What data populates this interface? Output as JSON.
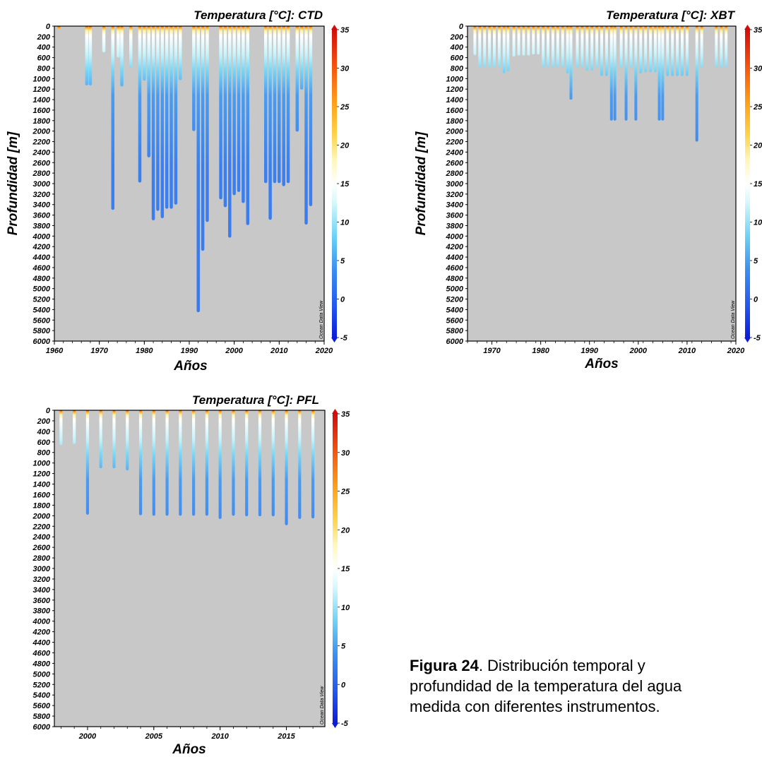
{
  "caption": {
    "label": "Figura 24",
    "line1": ". Distribución temporal y",
    "line2": "profundidad de la temperatura del agua",
    "line3": "medida con diferentes instrumentos."
  },
  "chart_data": [
    {
      "type": "scatter",
      "title": "Temperatura [°C]: CTD",
      "xlabel": "Años",
      "ylabel": "Profundidad [m]",
      "xlim": [
        1960,
        2020
      ],
      "ylim": [
        6000,
        0
      ],
      "x_ticks": [
        1960,
        1970,
        1980,
        1990,
        2000,
        2010,
        2020
      ],
      "y_ticks": [
        0,
        200,
        400,
        600,
        800,
        1000,
        1200,
        1400,
        1600,
        1800,
        2000,
        2200,
        2400,
        2600,
        2800,
        3000,
        3200,
        3400,
        3600,
        3800,
        4000,
        4200,
        4400,
        4600,
        4800,
        5000,
        5200,
        5400,
        5600,
        5800,
        6000
      ],
      "colorbar": {
        "min": -5,
        "max": 35,
        "ticks": [
          35,
          30,
          25,
          20,
          15,
          10,
          5,
          0,
          -5
        ]
      },
      "watermark": "Ocean Data View",
      "grid": false,
      "casts": [
        {
          "year": 1961,
          "max_depth": 60
        },
        {
          "year": 1967.2,
          "max_depth": 1130
        },
        {
          "year": 1968,
          "max_depth": 1130
        },
        {
          "year": 1971,
          "max_depth": 500
        },
        {
          "year": 1973,
          "max_depth": 3500
        },
        {
          "year": 1974.2,
          "max_depth": 600
        },
        {
          "year": 1975,
          "max_depth": 1150
        },
        {
          "year": 1977,
          "max_depth": 800
        },
        {
          "year": 1979,
          "max_depth": 2980
        },
        {
          "year": 1980,
          "max_depth": 1040
        },
        {
          "year": 1981,
          "max_depth": 2500
        },
        {
          "year": 1982,
          "max_depth": 3700
        },
        {
          "year": 1983,
          "max_depth": 3520
        },
        {
          "year": 1984,
          "max_depth": 3660
        },
        {
          "year": 1985,
          "max_depth": 3480
        },
        {
          "year": 1986,
          "max_depth": 3480
        },
        {
          "year": 1987,
          "max_depth": 3400
        },
        {
          "year": 1988,
          "max_depth": 1030
        },
        {
          "year": 1991,
          "max_depth": 2000
        },
        {
          "year": 1992,
          "max_depth": 5450
        },
        {
          "year": 1993,
          "max_depth": 4280
        },
        {
          "year": 1994,
          "max_depth": 3730
        },
        {
          "year": 1997,
          "max_depth": 3300
        },
        {
          "year": 1998,
          "max_depth": 3450
        },
        {
          "year": 1999,
          "max_depth": 4030
        },
        {
          "year": 2000,
          "max_depth": 3220
        },
        {
          "year": 2001,
          "max_depth": 3160
        },
        {
          "year": 2002,
          "max_depth": 3370
        },
        {
          "year": 2003,
          "max_depth": 3790
        },
        {
          "year": 2007,
          "max_depth": 2990
        },
        {
          "year": 2008,
          "max_depth": 3690
        },
        {
          "year": 2009,
          "max_depth": 2990
        },
        {
          "year": 2010,
          "max_depth": 2990
        },
        {
          "year": 2011,
          "max_depth": 3050
        },
        {
          "year": 2012,
          "max_depth": 2990
        },
        {
          "year": 2014,
          "max_depth": 2010
        },
        {
          "year": 2015,
          "max_depth": 1210
        },
        {
          "year": 2016,
          "max_depth": 3780
        },
        {
          "year": 2017,
          "max_depth": 3430
        }
      ]
    },
    {
      "type": "scatter",
      "title": "Temperatura [°C]: XBT",
      "xlabel": "Años",
      "ylabel": "Profundidad [m]",
      "xlim": [
        1965,
        2020
      ],
      "ylim": [
        6000,
        0
      ],
      "x_ticks": [
        1970,
        1980,
        1990,
        2000,
        2010,
        2020
      ],
      "y_ticks": [
        0,
        200,
        400,
        600,
        800,
        1000,
        1200,
        1400,
        1600,
        1800,
        2000,
        2200,
        2400,
        2600,
        2800,
        3000,
        3200,
        3400,
        3600,
        3800,
        4000,
        4200,
        4400,
        4600,
        4800,
        5000,
        5200,
        5400,
        5600,
        5800,
        6000
      ],
      "colorbar": {
        "min": -5,
        "max": 35,
        "ticks": [
          35,
          30,
          25,
          20,
          15,
          10,
          5,
          0,
          -5
        ]
      },
      "watermark": "Ocean Data View",
      "grid": false,
      "casts": [
        {
          "year": 1966.5,
          "max_depth": 550
        },
        {
          "year": 1967.5,
          "max_depth": 780
        },
        {
          "year": 1968.5,
          "max_depth": 780
        },
        {
          "year": 1969.5,
          "max_depth": 780
        },
        {
          "year": 1970.5,
          "max_depth": 780
        },
        {
          "year": 1971.5,
          "max_depth": 780
        },
        {
          "year": 1972.5,
          "max_depth": 900
        },
        {
          "year": 1973.3,
          "max_depth": 860
        },
        {
          "year": 1974.5,
          "max_depth": 580
        },
        {
          "year": 1975.5,
          "max_depth": 560
        },
        {
          "year": 1976.5,
          "max_depth": 560
        },
        {
          "year": 1977.5,
          "max_depth": 560
        },
        {
          "year": 1978.5,
          "max_depth": 540
        },
        {
          "year": 1979.5,
          "max_depth": 540
        },
        {
          "year": 1980.5,
          "max_depth": 780
        },
        {
          "year": 1981.5,
          "max_depth": 780
        },
        {
          "year": 1982.5,
          "max_depth": 780
        },
        {
          "year": 1983.5,
          "max_depth": 780
        },
        {
          "year": 1984.5,
          "max_depth": 780
        },
        {
          "year": 1985.5,
          "max_depth": 900
        },
        {
          "year": 1986.2,
          "max_depth": 1400
        },
        {
          "year": 1987.5,
          "max_depth": 780
        },
        {
          "year": 1988.5,
          "max_depth": 780
        },
        {
          "year": 1989.5,
          "max_depth": 850
        },
        {
          "year": 1990.5,
          "max_depth": 850
        },
        {
          "year": 1991.5,
          "max_depth": 780
        },
        {
          "year": 1992.5,
          "max_depth": 950
        },
        {
          "year": 1993.5,
          "max_depth": 950
        },
        {
          "year": 1994.5,
          "max_depth": 1800
        },
        {
          "year": 1995.2,
          "max_depth": 1800
        },
        {
          "year": 1996.5,
          "max_depth": 780
        },
        {
          "year": 1997.5,
          "max_depth": 1800
        },
        {
          "year": 1998.5,
          "max_depth": 780
        },
        {
          "year": 1999.5,
          "max_depth": 1800
        },
        {
          "year": 2000.5,
          "max_depth": 900
        },
        {
          "year": 2001.5,
          "max_depth": 880
        },
        {
          "year": 2002.5,
          "max_depth": 880
        },
        {
          "year": 2003.5,
          "max_depth": 880
        },
        {
          "year": 2004.3,
          "max_depth": 1800
        },
        {
          "year": 2005,
          "max_depth": 1800
        },
        {
          "year": 2006,
          "max_depth": 950
        },
        {
          "year": 2007,
          "max_depth": 950
        },
        {
          "year": 2008,
          "max_depth": 950
        },
        {
          "year": 2009,
          "max_depth": 950
        },
        {
          "year": 2010,
          "max_depth": 950
        },
        {
          "year": 2012,
          "max_depth": 2200
        },
        {
          "year": 2013,
          "max_depth": 780
        },
        {
          "year": 2016,
          "max_depth": 780
        },
        {
          "year": 2017,
          "max_depth": 780
        },
        {
          "year": 2018,
          "max_depth": 780
        }
      ]
    },
    {
      "type": "scatter",
      "title": "Temperatura [°C]: PFL",
      "xlabel": "Años",
      "ylabel": "",
      "xlim": [
        1997.5,
        2017.9
      ],
      "ylim": [
        6000,
        0
      ],
      "x_ticks": [
        2000,
        2005,
        2010,
        2015
      ],
      "y_ticks": [
        0,
        200,
        400,
        600,
        800,
        1000,
        1200,
        1400,
        1600,
        1800,
        2000,
        2200,
        2400,
        2600,
        2800,
        3000,
        3200,
        3400,
        3600,
        3800,
        4000,
        4200,
        4400,
        4600,
        4800,
        5000,
        5200,
        5400,
        5600,
        5800,
        6000
      ],
      "colorbar": {
        "min": -5,
        "max": 35,
        "ticks": [
          35,
          30,
          25,
          20,
          15,
          10,
          5,
          0,
          -5
        ]
      },
      "watermark": "Ocean Data View",
      "grid": false,
      "casts": [
        {
          "year": 1998,
          "max_depth": 660
        },
        {
          "year": 1999,
          "max_depth": 640
        },
        {
          "year": 2000,
          "max_depth": 1980
        },
        {
          "year": 2001,
          "max_depth": 1100
        },
        {
          "year": 2002,
          "max_depth": 1100
        },
        {
          "year": 2003,
          "max_depth": 1140
        },
        {
          "year": 2004,
          "max_depth": 1990
        },
        {
          "year": 2005,
          "max_depth": 2000
        },
        {
          "year": 2006,
          "max_depth": 2000
        },
        {
          "year": 2007,
          "max_depth": 2000
        },
        {
          "year": 2008,
          "max_depth": 2000
        },
        {
          "year": 2009,
          "max_depth": 2000
        },
        {
          "year": 2010,
          "max_depth": 2060
        },
        {
          "year": 2011,
          "max_depth": 2000
        },
        {
          "year": 2012,
          "max_depth": 2010
        },
        {
          "year": 2013,
          "max_depth": 2010
        },
        {
          "year": 2014,
          "max_depth": 2010
        },
        {
          "year": 2015,
          "max_depth": 2180
        },
        {
          "year": 2016,
          "max_depth": 2060
        },
        {
          "year": 2017,
          "max_depth": 2050
        }
      ]
    }
  ]
}
